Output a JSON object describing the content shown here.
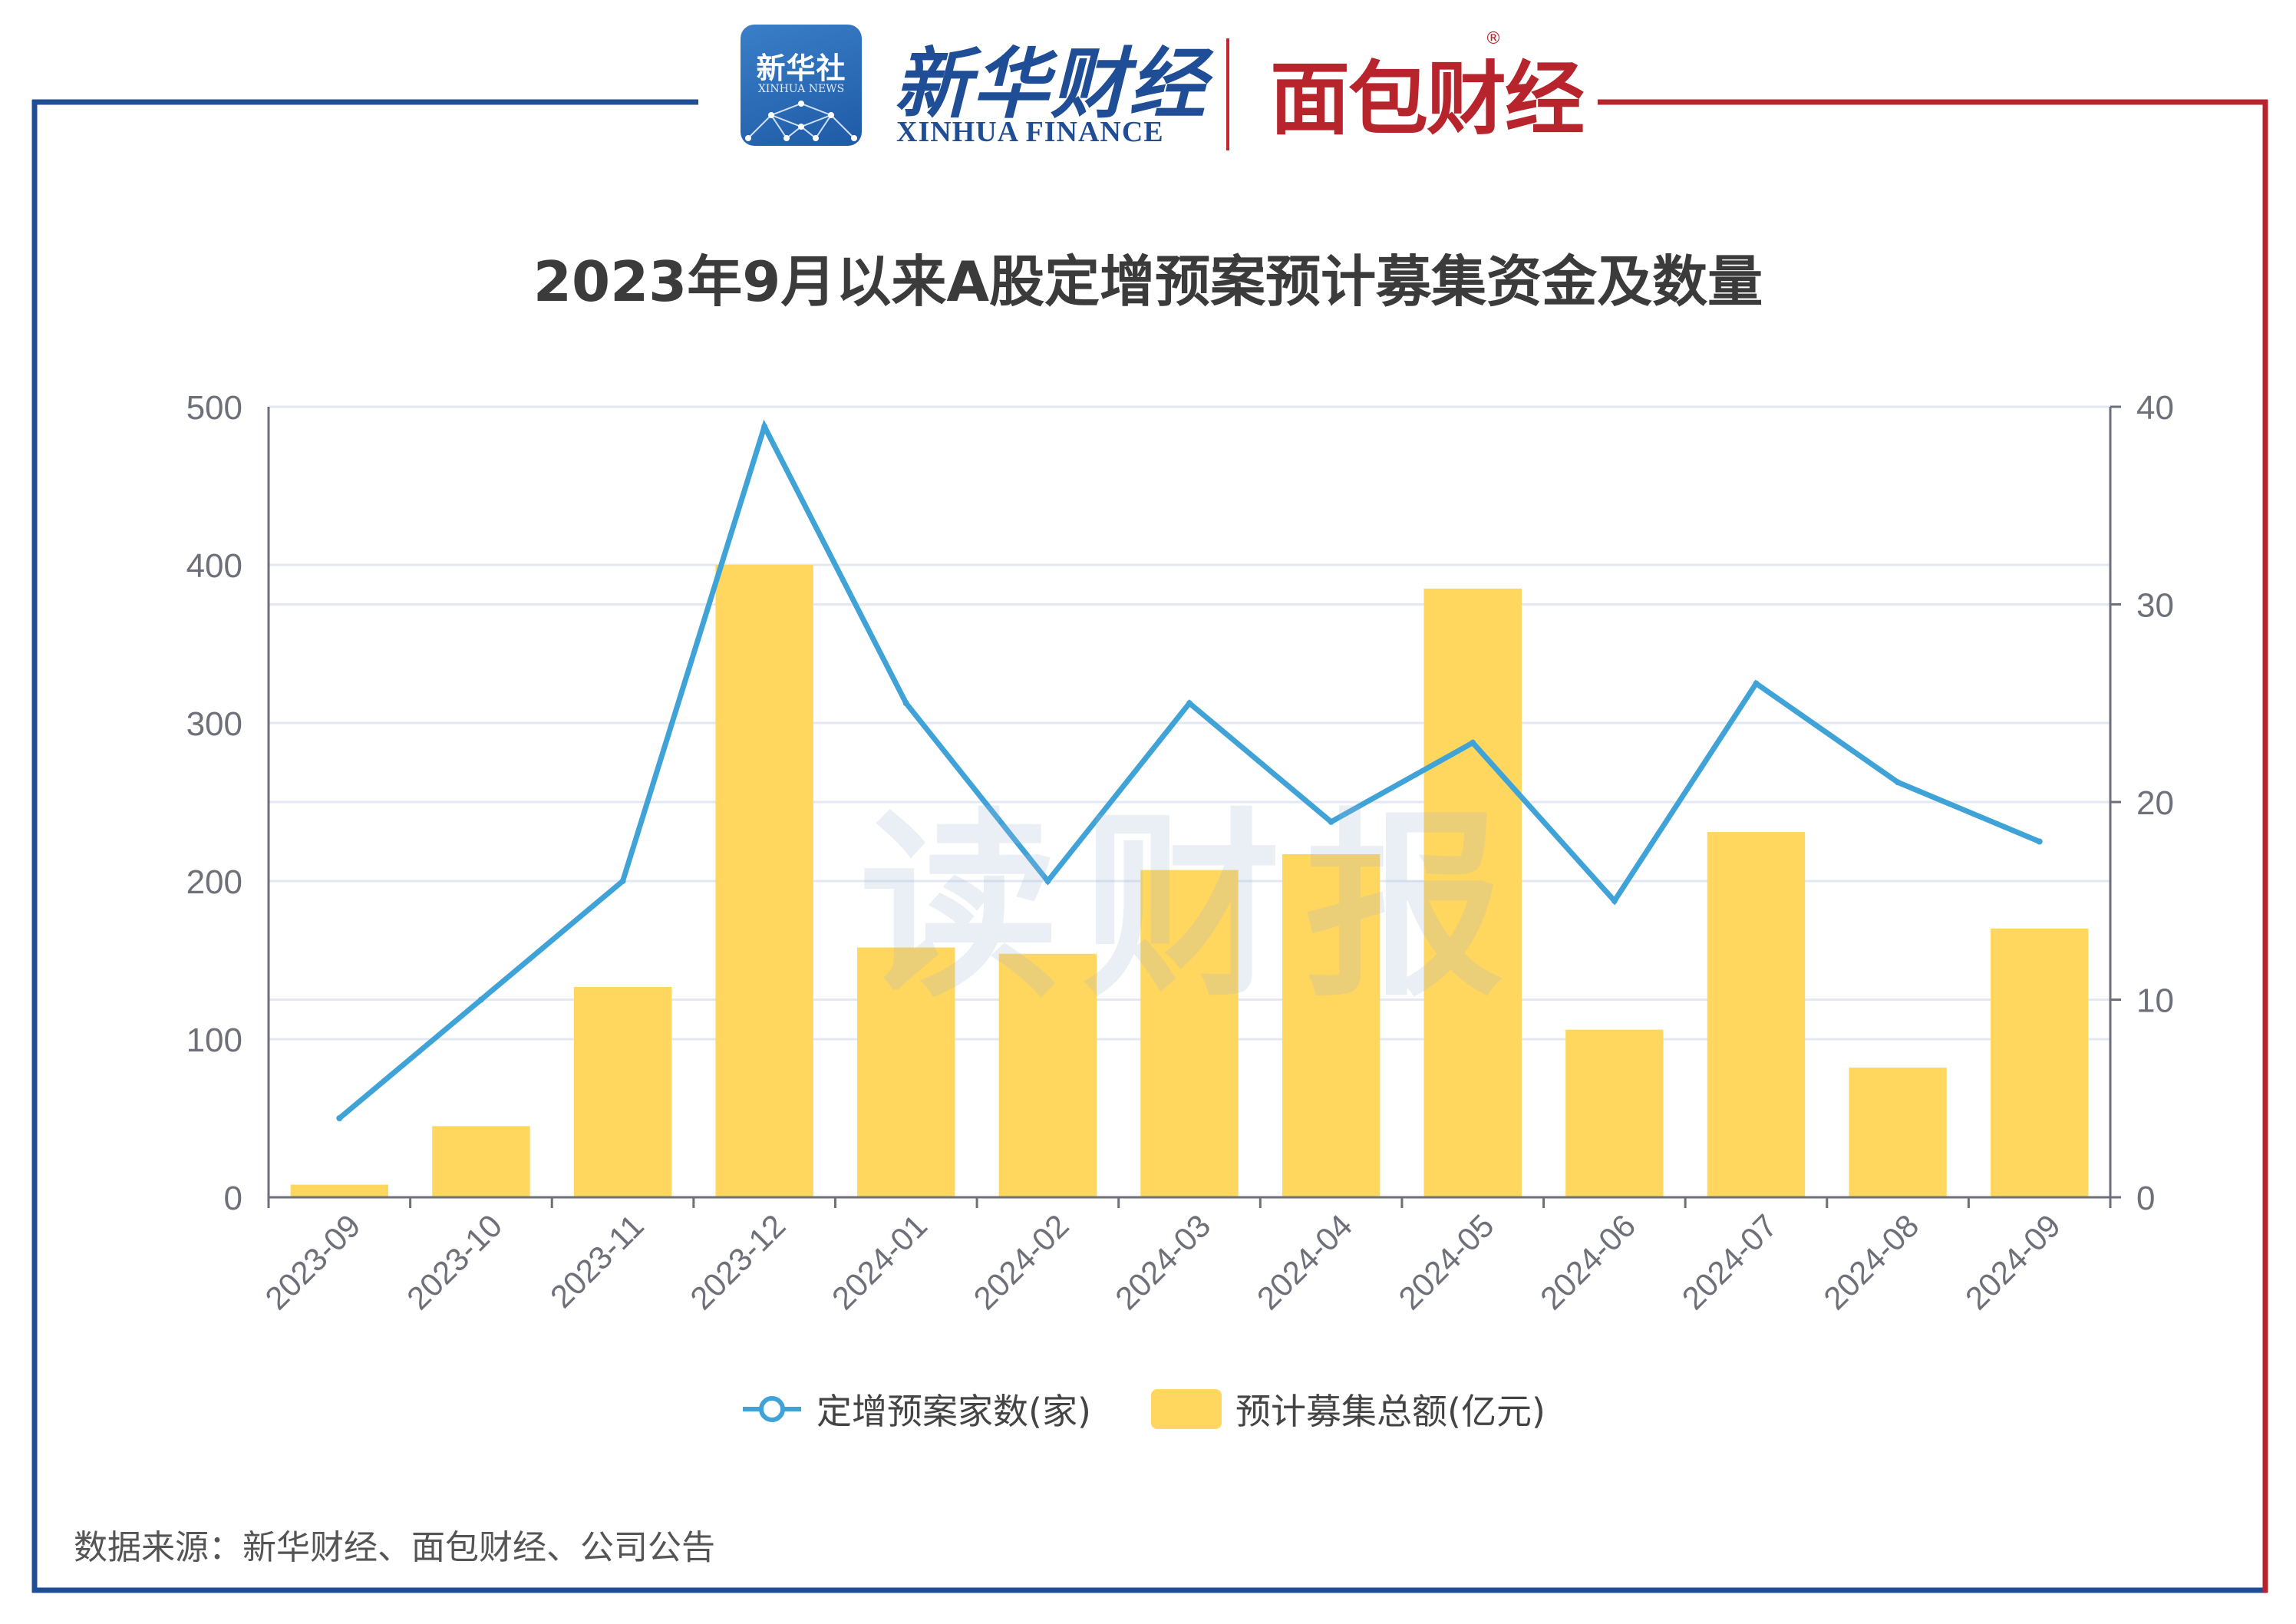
{
  "header": {
    "xinhua_logo_cn": "新华社",
    "xinhua_logo_en": "XINHUA NEWS",
    "xinhua_finance_cn": "新华财经",
    "xinhua_finance_en": "XINHUA FINANCE",
    "mianbao_cn": "面包财经",
    "registered_mark": "®"
  },
  "colors": {
    "frame_left": "#1f4e96",
    "frame_right": "#b8242c",
    "bar": "#ffd75e",
    "line": "#3fa3d8",
    "grid": "#e3e8f3",
    "axis": "#6e7079"
  },
  "watermark": "读财报",
  "source": "数据来源：新华财经、面包财经、公司公告",
  "chart_data": {
    "type": "bar",
    "title": "2023年9月以来A股定增预案预计募集资金及数量",
    "categories": [
      "2023-09",
      "2023-10",
      "2023-11",
      "2023-12",
      "2024-01",
      "2024-02",
      "2024-03",
      "2024-04",
      "2024-05",
      "2024-06",
      "2024-07",
      "2024-08",
      "2024-09"
    ],
    "series": [
      {
        "name": "预计募集总额(亿元)",
        "type": "bar",
        "axis": "left",
        "values": [
          8,
          45,
          133,
          400,
          158,
          154,
          207,
          217,
          385,
          106,
          231,
          82,
          170
        ]
      },
      {
        "name": "定增预案家数(家)",
        "type": "line",
        "axis": "right",
        "values": [
          4,
          10,
          16,
          39,
          25,
          16,
          25,
          19,
          23,
          15,
          26,
          21,
          18
        ]
      }
    ],
    "y_left": {
      "min": 0,
      "max": 500,
      "ticks": [
        "0",
        "100",
        "200",
        "300",
        "400",
        "500"
      ]
    },
    "y_right": {
      "min": 0,
      "max": 40,
      "ticks": [
        "0",
        "10",
        "20",
        "30",
        "40"
      ]
    },
    "legend": [
      "定增预案家数(家)",
      "预计募集总额(亿元)"
    ],
    "legend_position": "bottom-center",
    "grid": true
  }
}
